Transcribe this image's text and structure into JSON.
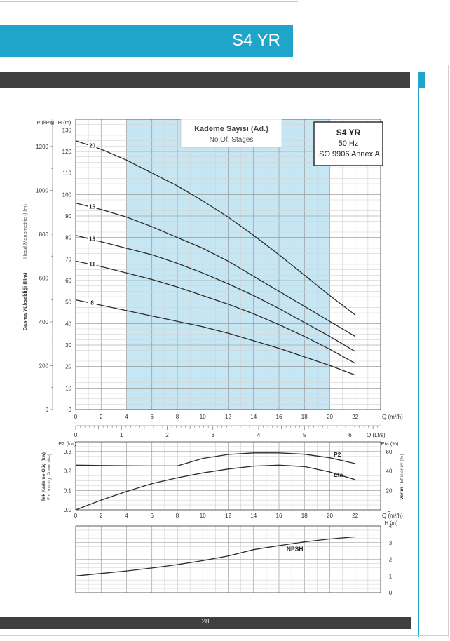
{
  "page": {
    "title": "S4 YR",
    "page_number": "28"
  },
  "info_box": {
    "model": "S4 YR",
    "frequency": "50 Hz",
    "standard": "ISO 9906 Annex A"
  },
  "stages_box": {
    "title": "Kademe Sayısı (Ad.)",
    "subtitle": "No.Of. Stages"
  },
  "colors": {
    "brand_blue": "#1ea5c9",
    "band_dark": "#3f3f3f",
    "shaded_area": "#c7e6f3",
    "curve": "#2b2b2b"
  },
  "chart_data": [
    {
      "type": "line",
      "name": "head-curves",
      "xlabel_unit": "Q (m³/h)",
      "xlabel_secondary_unit": "Q (Lt/s)",
      "ylabel_unit": "H (m)",
      "ylabel_secondary_unit": "P (kPa)",
      "ylabel_tr": "Basma Yüksekliği (Hm)",
      "ylabel_en": "Head Manometric (Hm)",
      "xlim": [
        0,
        24
      ],
      "ylim": [
        0,
        135
      ],
      "x_ticks": [
        0,
        2,
        4,
        6,
        8,
        10,
        12,
        14,
        16,
        18,
        20,
        22
      ],
      "y_ticks": [
        0,
        10,
        20,
        30,
        40,
        50,
        60,
        70,
        80,
        90,
        100,
        110,
        120,
        130
      ],
      "kpa_ticks": [
        0,
        200,
        400,
        600,
        800,
        1000,
        1200
      ],
      "lts_ticks": [
        0,
        1,
        2,
        3,
        4,
        5,
        6
      ],
      "shaded_range": [
        4,
        20
      ],
      "series": [
        {
          "name": "20",
          "x": [
            0,
            2,
            4,
            6,
            8,
            10,
            12,
            14,
            16,
            18,
            20,
            22
          ],
          "y": [
            125,
            121,
            116,
            110,
            104,
            97,
            89.5,
            81,
            72,
            62.5,
            53,
            44
          ]
        },
        {
          "name": "15",
          "x": [
            0,
            2,
            4,
            6,
            8,
            10,
            12,
            14,
            16,
            18,
            20,
            22
          ],
          "y": [
            96,
            93,
            89.5,
            85,
            80,
            75,
            69,
            62,
            55,
            48,
            41,
            34
          ]
        },
        {
          "name": "13",
          "x": [
            0,
            2,
            4,
            6,
            8,
            10,
            12,
            14,
            16,
            18,
            20,
            22
          ],
          "y": [
            81,
            78,
            75,
            72,
            68,
            63.5,
            58.5,
            53,
            47,
            40.5,
            34,
            27
          ]
        },
        {
          "name": "11",
          "x": [
            0,
            2,
            4,
            6,
            8,
            10,
            12,
            14,
            16,
            18,
            20,
            22
          ],
          "y": [
            69,
            66.5,
            63.5,
            60.5,
            57,
            53,
            49,
            44.5,
            39.5,
            34,
            28,
            21.5
          ]
        },
        {
          "name": "8",
          "x": [
            0,
            2,
            4,
            6,
            8,
            10,
            12,
            14,
            16,
            18,
            20,
            22
          ],
          "y": [
            51,
            48.5,
            46,
            43.5,
            41,
            38.5,
            35.5,
            32,
            28.5,
            24.5,
            20.5,
            16
          ]
        }
      ]
    },
    {
      "type": "line",
      "name": "power-efficiency",
      "xlabel_unit": "Q (m³/h)",
      "ylabel_left_unit": "P2 (kw)",
      "ylabel_left_tr": "Tek Kademe Güç (kw)",
      "ylabel_left_en": "For one stg. Power (kw)",
      "ylabel_right_unit": "Eta (%)",
      "ylabel_right_tr": "Verim",
      "ylabel_right_en": "Efficiency (%)",
      "xlim": [
        0,
        24
      ],
      "x_ticks": [
        0,
        2,
        4,
        6,
        8,
        10,
        12,
        14,
        16,
        18,
        20,
        22
      ],
      "ylim_left": [
        0,
        0.35
      ],
      "y_ticks_left": [
        0.0,
        0.1,
        0.2,
        0.3
      ],
      "ylim_right": [
        0,
        70
      ],
      "y_ticks_right": [
        0,
        20,
        40,
        60
      ],
      "series": [
        {
          "name": "P2",
          "axis": "left",
          "x": [
            0,
            2,
            4,
            6,
            8,
            10,
            12,
            14,
            16,
            18,
            20,
            22
          ],
          "y": [
            0.23,
            0.228,
            0.227,
            0.226,
            0.226,
            0.265,
            0.285,
            0.293,
            0.293,
            0.286,
            0.268,
            0.238
          ]
        },
        {
          "name": "Eta",
          "axis": "right",
          "x": [
            0,
            2,
            4,
            6,
            8,
            10,
            12,
            14,
            16,
            18,
            20,
            22
          ],
          "y": [
            0,
            10,
            19,
            27,
            33,
            38,
            42,
            45,
            46,
            44.5,
            39,
            31
          ]
        }
      ]
    },
    {
      "type": "line",
      "name": "npsh",
      "ylabel_unit": "H (m)",
      "xlim": [
        0,
        24
      ],
      "ylim": [
        0,
        4
      ],
      "y_ticks": [
        0,
        1,
        2,
        3,
        4
      ],
      "series": [
        {
          "name": "NPSH",
          "x": [
            0,
            2,
            4,
            6,
            8,
            10,
            12,
            14,
            16,
            18,
            20,
            22
          ],
          "y": [
            1.0,
            1.15,
            1.3,
            1.48,
            1.68,
            1.92,
            2.2,
            2.58,
            2.82,
            3.05,
            3.22,
            3.35
          ]
        }
      ]
    }
  ]
}
